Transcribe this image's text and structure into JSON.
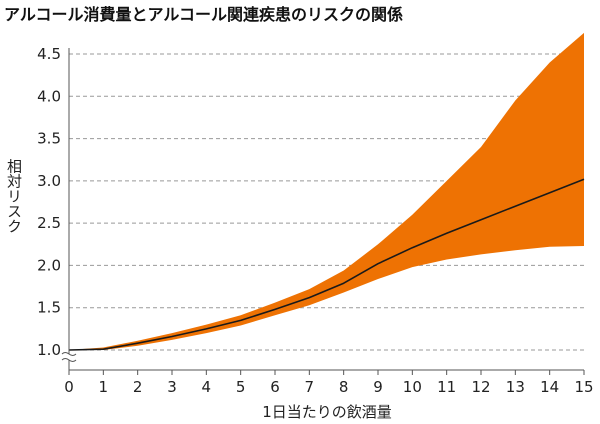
{
  "chart_data": {
    "type": "area",
    "title": "アルコール消費量とアルコール関連疾患のリスクの関係",
    "xlabel": "1日当たりの飲酒量",
    "ylabel": "相対リスク",
    "xlim": [
      0,
      15
    ],
    "ylim": [
      1.0,
      4.5
    ],
    "x_ticks": [
      0,
      1,
      2,
      3,
      4,
      5,
      6,
      7,
      8,
      9,
      10,
      11,
      12,
      13,
      14,
      15
    ],
    "y_ticks": [
      1.0,
      1.5,
      2.0,
      2.5,
      3.0,
      3.5,
      4.0,
      4.5
    ],
    "y_tick_labels": [
      "1.0",
      "1.5",
      "2.0",
      "2.5",
      "3.0",
      "3.5",
      "4.0",
      "4.5"
    ],
    "y_axis_break": true,
    "grid": "horizontal-dashed",
    "colors": {
      "band": "#ee7203",
      "line": "#1a1a1a",
      "grid": "#999999",
      "axis": "#555555"
    },
    "series": [
      {
        "kind": "line",
        "x": [
          0,
          1,
          2,
          3,
          4,
          5,
          6,
          7,
          8,
          9,
          10,
          11,
          12,
          13,
          14,
          15
        ],
        "values": [
          1.0,
          1.01,
          1.08,
          1.16,
          1.25,
          1.35,
          1.48,
          1.62,
          1.79,
          2.02,
          2.21,
          2.38,
          2.54,
          2.7,
          2.86,
          3.02
        ]
      },
      {
        "kind": "band",
        "x": [
          0,
          1,
          2,
          3,
          4,
          5,
          6,
          7,
          8,
          9,
          10,
          11,
          12,
          13,
          14,
          15
        ],
        "lower": [
          1.0,
          1.0,
          1.05,
          1.12,
          1.2,
          1.29,
          1.41,
          1.53,
          1.68,
          1.84,
          1.98,
          2.07,
          2.13,
          2.18,
          2.22,
          2.23
        ],
        "upper": [
          1.0,
          1.03,
          1.11,
          1.2,
          1.3,
          1.41,
          1.56,
          1.72,
          1.94,
          2.25,
          2.6,
          3.0,
          3.4,
          3.95,
          4.4,
          4.75
        ]
      }
    ]
  }
}
